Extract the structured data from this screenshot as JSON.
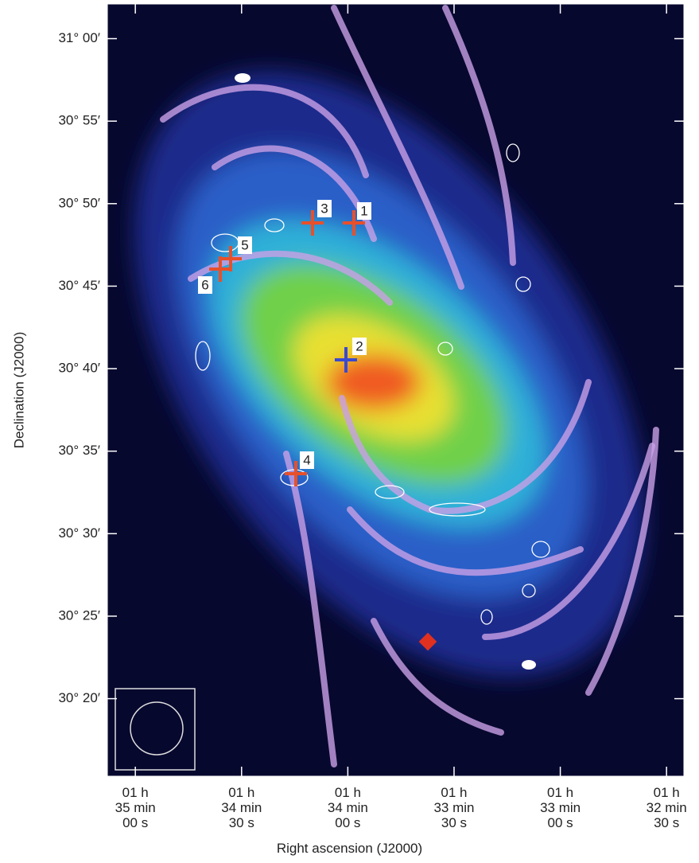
{
  "chart_data": {
    "type": "image",
    "x_label": "Right ascension (J2000)",
    "y_label": "Declination (J2000)",
    "xlim": [
      5707.9,
      5545.1
    ],
    "ylim": [
      1815.3,
      1862.1
    ],
    "xticks": [
      {
        "value": 5700,
        "label": "01 h\n35 min\n00 s"
      },
      {
        "value": 5670,
        "label": "01 h\n34 min\n30 s"
      },
      {
        "value": 5640,
        "label": "01 h\n34 min\n00 s"
      },
      {
        "value": 5610,
        "label": "01 h\n33 min\n30 s"
      },
      {
        "value": 5580,
        "label": "01 h\n33 min\n00 s"
      },
      {
        "value": 5550,
        "label": "01 h\n32 min\n30 s"
      }
    ],
    "yticks": [
      {
        "value": 1860,
        "label": "31° 00′"
      },
      {
        "value": 1855,
        "label": "30° 55′"
      },
      {
        "value": 1850,
        "label": "30° 50′"
      },
      {
        "value": 1845,
        "label": "30° 45′"
      },
      {
        "value": 1840,
        "label": "30° 40′"
      },
      {
        "value": 1835,
        "label": "30° 35′"
      },
      {
        "value": 1830,
        "label": "30° 30′"
      },
      {
        "value": 1825,
        "label": "30° 25′"
      },
      {
        "value": 1820,
        "label": "30° 20′"
      }
    ],
    "annotations": [
      "1",
      "2",
      "3",
      "4",
      "5",
      "6"
    ]
  }
}
